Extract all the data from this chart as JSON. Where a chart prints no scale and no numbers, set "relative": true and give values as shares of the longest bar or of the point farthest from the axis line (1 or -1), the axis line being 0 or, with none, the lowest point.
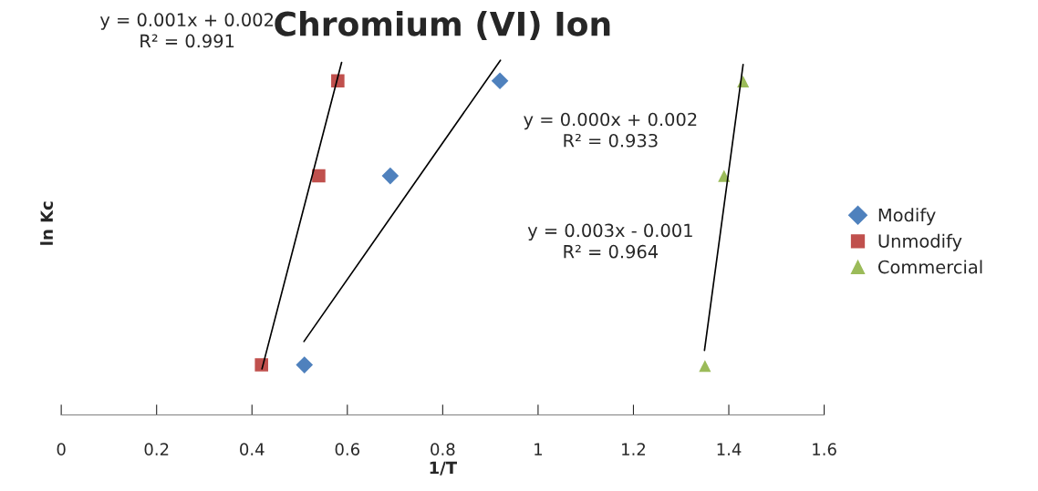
{
  "chart_data": {
    "type": "scatter",
    "title": "Chromium (VI) Ion",
    "xlabel": "1/T",
    "ylabel": "ln Kc",
    "relative": true,
    "xlim": [
      0,
      1.6
    ],
    "xticks": [
      0,
      0.2,
      0.4,
      0.6,
      0.8,
      1,
      1.2,
      1.4,
      1.6
    ],
    "legend": "right",
    "grid": false,
    "series": [
      {
        "name": "Modify",
        "color": "#4f81bd",
        "marker": "diamond",
        "x": [
          0.51,
          0.69,
          0.92
        ],
        "values": [
          0.141,
          0.674,
          0.942
        ]
      },
      {
        "name": "Unmodify",
        "color": "#c0504d",
        "marker": "square",
        "x": [
          0.42,
          0.54,
          0.58
        ],
        "values": [
          0.141,
          0.674,
          0.942
        ]
      },
      {
        "name": "Commercial",
        "color": "#9bbb59",
        "marker": "triangle",
        "x": [
          1.35,
          1.39,
          1.43
        ],
        "values": [
          0.138,
          0.674,
          0.94
        ]
      },
      {
        "type": "line",
        "color": "#000000",
        "marker": "none",
        "x": [
          0.421,
          0.588
        ],
        "values": [
          0.13,
          0.994
        ]
      },
      {
        "type": "line",
        "color": "#000000",
        "marker": "none",
        "x": [
          0.509,
          0.921
        ],
        "values": [
          0.207,
          1.0
        ]
      },
      {
        "type": "line",
        "color": "#000000",
        "marker": "none",
        "x": [
          1.349,
          1.43
        ],
        "values": [
          0.182,
          0.988
        ]
      }
    ],
    "annotations": [
      "y = 0.001x + 0.002\nR² = 0.991",
      "y = 0.000x + 0.002\nR² = 0.933",
      "y = 0.003x - 0.001\nR² = 0.964"
    ]
  }
}
